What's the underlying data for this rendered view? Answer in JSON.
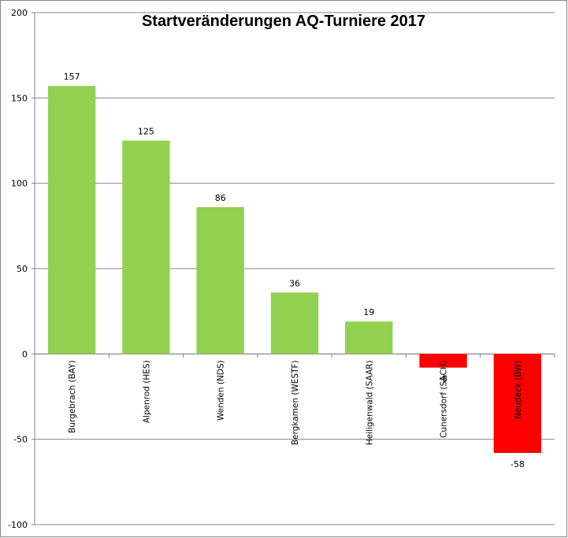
{
  "chart_data": {
    "type": "bar",
    "title": "Startveränderungen AQ-Turniere 2017",
    "categories": [
      "Burgebrach (BAY)",
      "Alpenrod (HES)",
      "Wenden (NDS)",
      "Bergkamen (WESTF)",
      "Heiligenwald (SAAR)",
      "Cunersdorf (SACH)",
      "Neudeck (BW)"
    ],
    "values": [
      157,
      125,
      86,
      36,
      19,
      -8,
      -58
    ],
    "value_labels": [
      "157",
      "125",
      "86",
      "36",
      "19",
      "-8",
      "-58"
    ],
    "y_ticks": [
      "200",
      "150",
      "100",
      "50",
      "0",
      "-50",
      "-100"
    ],
    "ylim": [
      -100,
      200
    ],
    "grid": true,
    "legend": "none",
    "colors": {
      "positive": "#92d050",
      "negative": "#ff0000",
      "grid": "#868686",
      "border": "#868686"
    }
  }
}
